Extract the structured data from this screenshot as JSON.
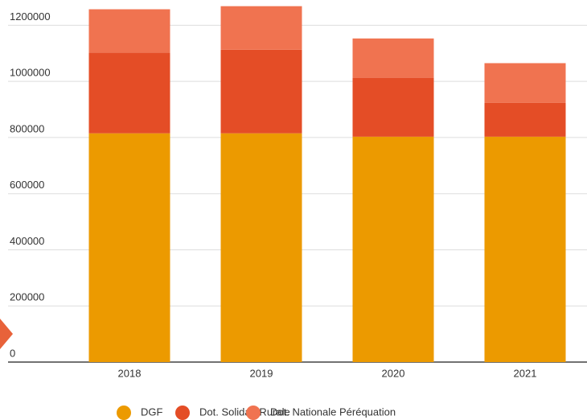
{
  "chart_data": {
    "type": "stacked_bar",
    "categories": [
      "2018",
      "2019",
      "2020",
      "2021"
    ],
    "series": [
      {
        "name": "DGF",
        "color": "#ec9a00",
        "values": [
          815000,
          815000,
          803000,
          803000
        ]
      },
      {
        "name": "Dot. Solidat. Rurale",
        "color": "#e44d26",
        "values": [
          287000,
          298000,
          210000,
          121000
        ]
      },
      {
        "name": "Dot. Nationale Péréquation",
        "color": "#f07350",
        "values": [
          155000,
          155000,
          140000,
          141000
        ]
      }
    ],
    "ylim": [
      0,
      1290000
    ],
    "yticks": [
      0,
      200000,
      400000,
      600000,
      800000,
      1000000,
      1200000
    ],
    "grid": true,
    "legend": "bottom"
  }
}
